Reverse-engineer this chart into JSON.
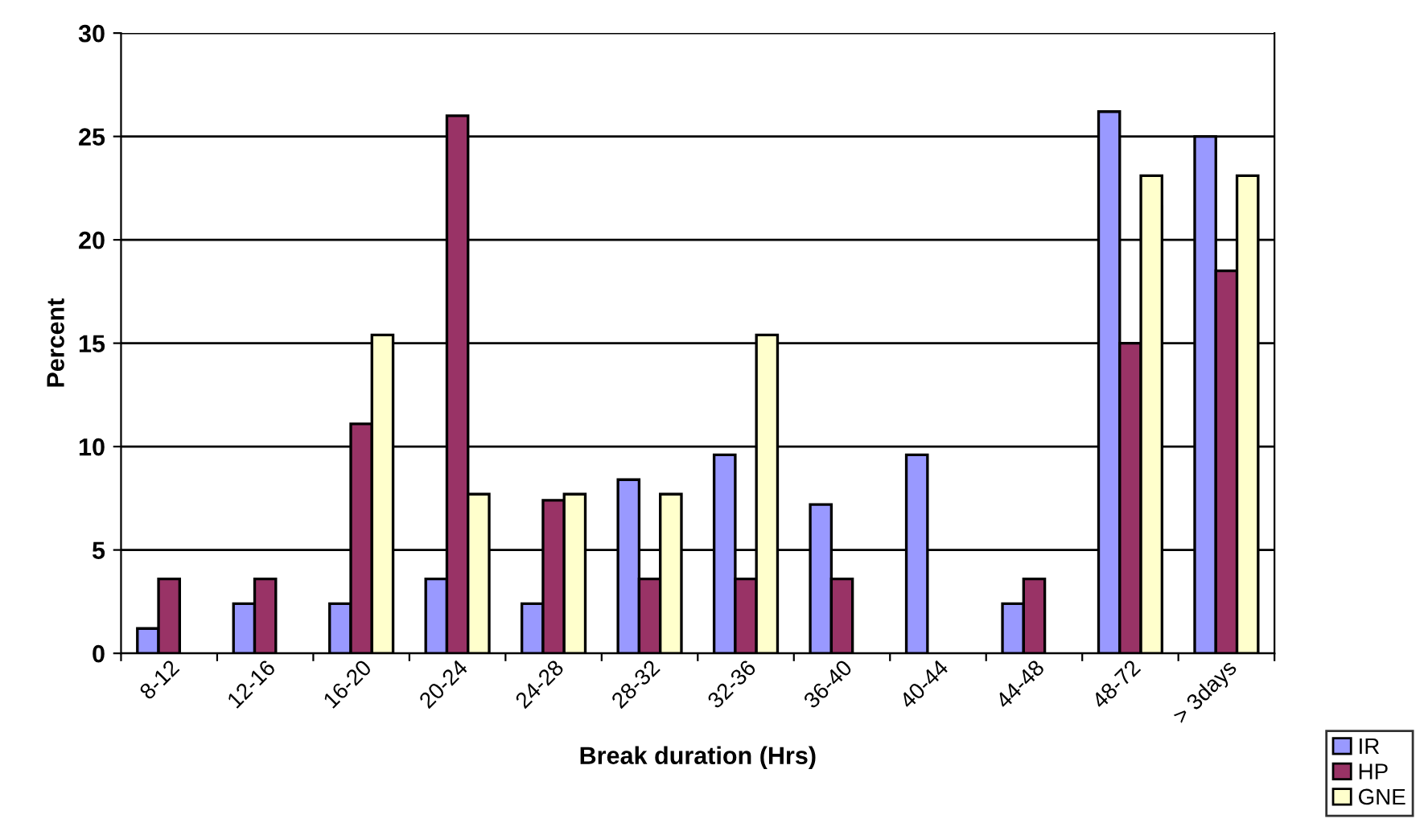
{
  "chart_data": {
    "type": "bar",
    "xlabel": "Break duration (Hrs)",
    "ylabel": "Percent",
    "categories": [
      "8-12",
      "12-16",
      "16-20",
      "20-24",
      "24-28",
      "28-32",
      "32-36",
      "36-40",
      "40-44",
      "44-48",
      "48-72",
      "> 3days"
    ],
    "series": [
      {
        "name": "IR",
        "color": "#9999ff",
        "values": [
          1.2,
          2.4,
          2.4,
          3.6,
          2.4,
          8.4,
          9.6,
          7.2,
          9.6,
          2.4,
          26.2,
          25
        ]
      },
      {
        "name": "HP",
        "color": "#993366",
        "values": [
          3.6,
          3.6,
          11.1,
          26,
          7.4,
          3.6,
          3.6,
          3.6,
          null,
          3.6,
          15,
          18.5
        ]
      },
      {
        "name": "GNE",
        "color": "#ffffcc",
        "values": [
          null,
          null,
          15.4,
          7.7,
          7.7,
          7.7,
          15.4,
          null,
          null,
          null,
          23.1,
          23.1
        ]
      }
    ],
    "ylim": [
      0,
      30
    ],
    "yticks": [
      0,
      5,
      10,
      15,
      20,
      25,
      30
    ],
    "grid": "y",
    "legend": "bottom right"
  }
}
